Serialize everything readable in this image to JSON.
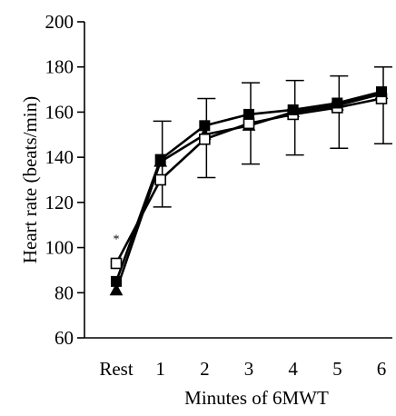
{
  "chart_data": {
    "type": "line",
    "title": "",
    "xlabel": "Minutes of 6MWT",
    "ylabel": "Heart rate (beats/min)",
    "categories": [
      "Rest",
      "1",
      "2",
      "3",
      "4",
      "5",
      "6"
    ],
    "ylim": [
      60,
      200
    ],
    "yticks": [
      60,
      80,
      100,
      120,
      140,
      160,
      180,
      200
    ],
    "grid": false,
    "legend": "none",
    "annotation": "*",
    "series": [
      {
        "marker": "filled-square",
        "color": "#000000",
        "values": [
          85,
          139,
          154,
          159,
          161,
          164,
          169
        ]
      },
      {
        "marker": "open-square",
        "color": "#000000",
        "values": [
          93,
          130,
          148,
          155,
          159,
          162,
          166
        ]
      },
      {
        "marker": "filled-triangle",
        "color": "#000000",
        "values": [
          81,
          138,
          150,
          154,
          160,
          163,
          168
        ]
      }
    ],
    "error_bars": [
      {
        "category": "1",
        "low": 118,
        "high": 156
      },
      {
        "category": "2",
        "low": 131,
        "high": 166
      },
      {
        "category": "3",
        "low": 137,
        "high": 173
      },
      {
        "category": "4",
        "low": 141,
        "high": 174
      },
      {
        "category": "5",
        "low": 144,
        "high": 176
      },
      {
        "category": "6",
        "low": 146,
        "high": 180
      }
    ]
  }
}
